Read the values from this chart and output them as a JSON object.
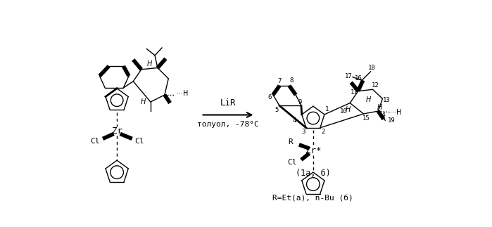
{
  "background_color": "#ffffff",
  "arrow_text_line1": "LiR",
  "arrow_text_line2": "толуол, -78°C",
  "label_1a_b": "(1a, б)",
  "label_R": "R=Et(a), n-Bu (б)",
  "fig_width": 6.99,
  "fig_height": 3.23,
  "dpi": 100
}
